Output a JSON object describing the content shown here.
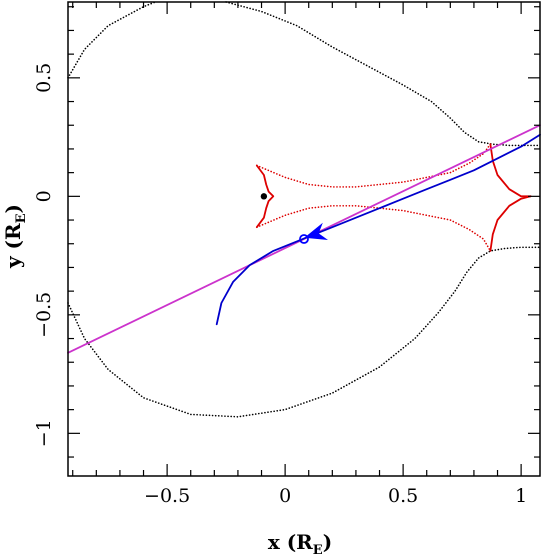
{
  "chart_data": {
    "type": "line",
    "xlabel": "x (R",
    "xlabel_sub": "E",
    "xlabel_close": ")",
    "ylabel": "y (R",
    "ylabel_sub": "E",
    "ylabel_close": ")",
    "xlim": [
      -0.92,
      1.08
    ],
    "ylim": [
      -1.18,
      0.82
    ],
    "x_ticks": [
      -0.5,
      0,
      0.5,
      1
    ],
    "x_tick_labels": [
      "−0.5",
      "0",
      "0.5",
      "1"
    ],
    "y_ticks": [
      -1,
      -0.5,
      0,
      0.5
    ],
    "y_tick_labels": [
      "−1",
      "−0.5",
      "0",
      "0.5"
    ],
    "x_minor_step": 0.1,
    "y_minor_step": 0.1,
    "grid": false,
    "colors": {
      "critical_curve": "#000000",
      "caustic": "#dd0000",
      "trajectory_curved": "#0000cc",
      "trajectory_straight": "#cc33cc",
      "lens_point": "#000000",
      "marker": "#0000ff"
    },
    "series": [
      {
        "style": "dotted",
        "color": "#000000",
        "points": [
          [
            -0.92,
            0.5
          ],
          [
            -0.85,
            0.62
          ],
          [
            -0.75,
            0.72
          ],
          [
            -0.6,
            0.8
          ],
          [
            -0.55,
            0.82
          ]
        ]
      },
      {
        "style": "dotted",
        "color": "#000000",
        "points": [
          [
            -0.25,
            0.82
          ],
          [
            -0.1,
            0.78
          ],
          [
            0.05,
            0.72
          ],
          [
            0.2,
            0.63
          ],
          [
            0.35,
            0.55
          ],
          [
            0.5,
            0.47
          ],
          [
            0.62,
            0.4
          ],
          [
            0.7,
            0.33
          ],
          [
            0.76,
            0.27
          ],
          [
            0.82,
            0.23
          ],
          [
            0.88,
            0.22
          ],
          [
            0.95,
            0.215
          ],
          [
            1.0,
            0.215
          ],
          [
            1.08,
            0.215
          ]
        ]
      },
      {
        "style": "dotted",
        "color": "#000000",
        "points": [
          [
            -0.92,
            -0.45
          ],
          [
            -0.85,
            -0.6
          ],
          [
            -0.75,
            -0.73
          ],
          [
            -0.6,
            -0.85
          ],
          [
            -0.4,
            -0.92
          ],
          [
            -0.2,
            -0.93
          ],
          [
            0.0,
            -0.9
          ],
          [
            0.2,
            -0.83
          ],
          [
            0.4,
            -0.72
          ],
          [
            0.55,
            -0.6
          ],
          [
            0.65,
            -0.49
          ],
          [
            0.72,
            -0.4
          ],
          [
            0.77,
            -0.32
          ],
          [
            0.82,
            -0.26
          ],
          [
            0.87,
            -0.23
          ],
          [
            0.93,
            -0.22
          ],
          [
            1.0,
            -0.215
          ],
          [
            1.08,
            -0.215
          ]
        ]
      },
      {
        "style": "solid",
        "color": "#dd0000",
        "points": [
          [
            -0.12,
            0.13
          ],
          [
            -0.09,
            0.09
          ],
          [
            -0.08,
            0.05
          ],
          [
            -0.07,
            0.02
          ],
          [
            -0.05,
            0.0
          ],
          [
            -0.07,
            -0.02
          ],
          [
            -0.08,
            -0.05
          ],
          [
            -0.09,
            -0.09
          ],
          [
            -0.12,
            -0.13
          ]
        ]
      },
      {
        "style": "dotted",
        "color": "#dd0000",
        "points": [
          [
            -0.12,
            0.13
          ],
          [
            0.0,
            0.08
          ],
          [
            0.1,
            0.05
          ],
          [
            0.2,
            0.04
          ],
          [
            0.3,
            0.04
          ],
          [
            0.4,
            0.05
          ],
          [
            0.5,
            0.06
          ],
          [
            0.6,
            0.08
          ],
          [
            0.7,
            0.1
          ],
          [
            0.78,
            0.14
          ],
          [
            0.84,
            0.18
          ],
          [
            0.87,
            0.22
          ]
        ]
      },
      {
        "style": "dotted",
        "color": "#dd0000",
        "points": [
          [
            -0.12,
            -0.13
          ],
          [
            0.0,
            -0.08
          ],
          [
            0.1,
            -0.05
          ],
          [
            0.2,
            -0.04
          ],
          [
            0.3,
            -0.04
          ],
          [
            0.4,
            -0.05
          ],
          [
            0.5,
            -0.06
          ],
          [
            0.6,
            -0.08
          ],
          [
            0.7,
            -0.1
          ],
          [
            0.78,
            -0.14
          ],
          [
            0.84,
            -0.18
          ],
          [
            0.87,
            -0.23
          ]
        ]
      },
      {
        "style": "solid",
        "color": "#dd0000",
        "points": [
          [
            0.87,
            0.22
          ],
          [
            0.88,
            0.15
          ],
          [
            0.9,
            0.09
          ],
          [
            0.95,
            0.03
          ],
          [
            1.0,
            0.0
          ],
          [
            1.04,
            0.0
          ]
        ]
      },
      {
        "style": "solid",
        "color": "#dd0000",
        "points": [
          [
            0.87,
            -0.23
          ],
          [
            0.88,
            -0.16
          ],
          [
            0.9,
            -0.1
          ],
          [
            0.95,
            -0.04
          ],
          [
            1.0,
            -0.01
          ],
          [
            1.04,
            0.0
          ]
        ]
      },
      {
        "style": "solid",
        "color": "#cc33cc",
        "points": [
          [
            -0.92,
            -0.66
          ],
          [
            1.08,
            0.3
          ]
        ]
      },
      {
        "style": "solid",
        "color": "#0000cc",
        "points": [
          [
            -0.29,
            -0.54
          ],
          [
            -0.27,
            -0.45
          ],
          [
            -0.22,
            -0.36
          ],
          [
            -0.15,
            -0.29
          ],
          [
            -0.05,
            -0.23
          ],
          [
            0.05,
            -0.19
          ],
          [
            0.1,
            -0.17
          ],
          [
            0.2,
            -0.13
          ],
          [
            0.3,
            -0.09
          ],
          [
            0.4,
            -0.05
          ],
          [
            0.5,
            -0.01
          ],
          [
            0.6,
            0.03
          ],
          [
            0.7,
            0.07
          ],
          [
            0.8,
            0.11
          ],
          [
            0.9,
            0.16
          ],
          [
            1.0,
            0.21
          ],
          [
            1.08,
            0.26
          ]
        ]
      }
    ],
    "points": [
      {
        "x": -0.09,
        "y": 0.0,
        "shape": "dot",
        "color": "#000000"
      },
      {
        "x": 0.08,
        "y": -0.18,
        "shape": "circle",
        "color": "#0000ff"
      }
    ],
    "arrow": {
      "x": 0.13,
      "y": -0.16,
      "dx": -1,
      "dy": -0.3,
      "color": "#0000ff"
    }
  }
}
